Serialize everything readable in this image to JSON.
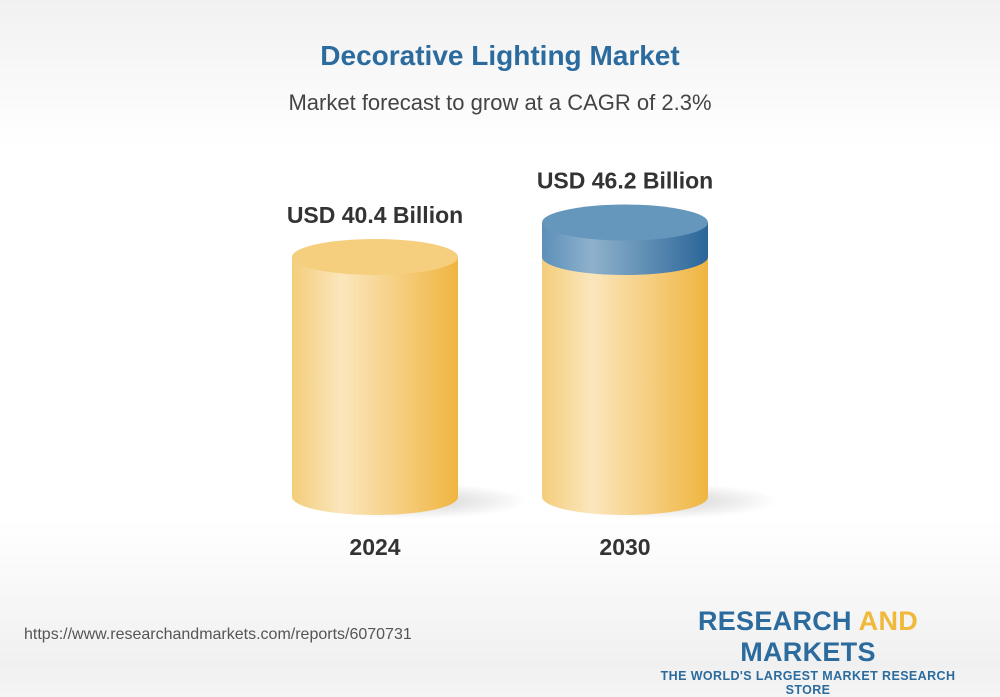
{
  "title": "Decorative Lighting Market",
  "subtitle": "Market forecast to grow at a CAGR of 2.3%",
  "chart_data": {
    "type": "bar",
    "style": "3d-cylinder",
    "categories": [
      "2024",
      "2030"
    ],
    "values": [
      40.4,
      46.2
    ],
    "data_labels": [
      "USD 40.4 Billion",
      "USD 46.2 Billion"
    ],
    "unit": "USD Billion",
    "colors": {
      "base": "#f0c060",
      "growth": "#5b8fb9"
    }
  },
  "footer": {
    "url": "https://www.researchandmarkets.com/reports/6070731",
    "logo_part1": "RESEARCH ",
    "logo_part2": "AND",
    "logo_part3": " MARKETS",
    "tagline": "THE WORLD'S LARGEST MARKET RESEARCH STORE"
  }
}
